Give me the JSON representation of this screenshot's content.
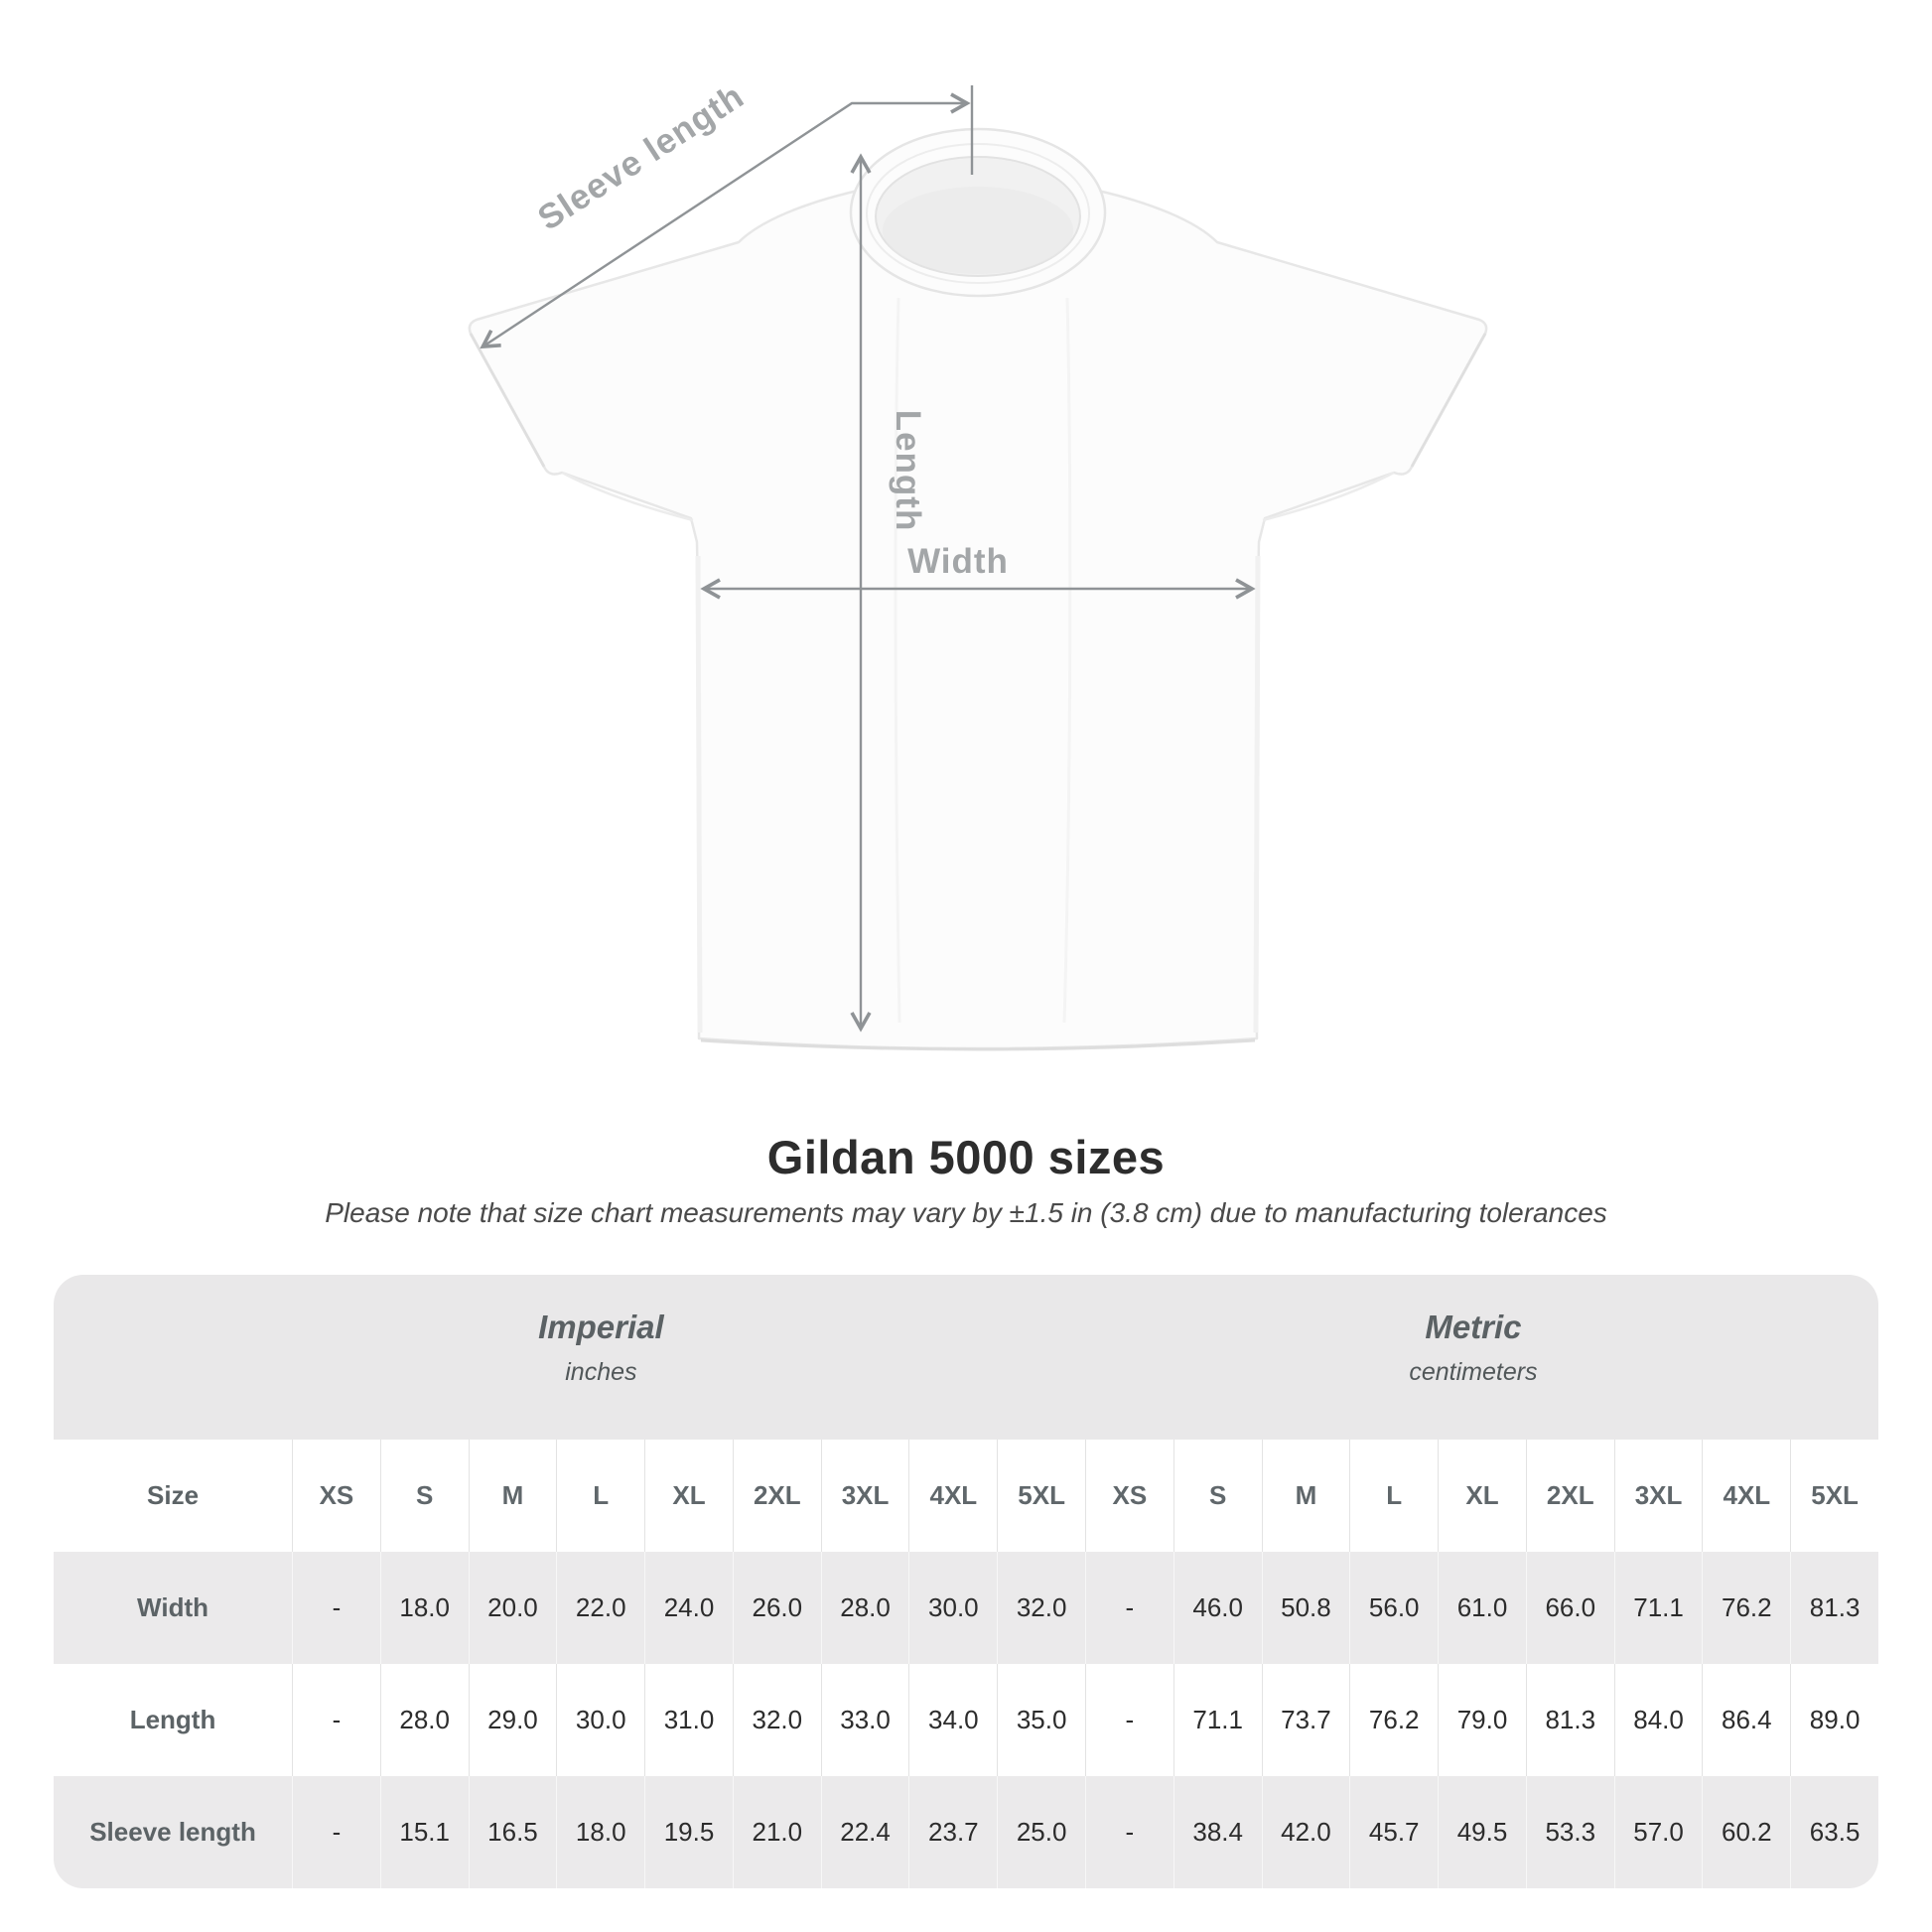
{
  "diagram": {
    "labels": {
      "sleeve_length": "Sleeve length",
      "length": "Length",
      "width": "Width"
    },
    "colors": {
      "annotation_line": "#8f9396",
      "annotation_text": "#a3a6a8",
      "shirt_outline": "#e7e7e7"
    }
  },
  "heading": {
    "title": "Gildan 5000 sizes",
    "subtitle": "Please note that size chart measurements may vary by ±1.5 in (3.8 cm) due to manufacturing tolerances"
  },
  "size_table": {
    "units": {
      "imperial": {
        "title": "Imperial",
        "subtitle": "inches"
      },
      "metric": {
        "title": "Metric",
        "subtitle": "centimeters"
      }
    },
    "header": {
      "label": "Size",
      "imperial_sizes": [
        "XS",
        "S",
        "M",
        "L",
        "XL",
        "2XL",
        "3XL",
        "4XL",
        "5XL"
      ],
      "metric_sizes": [
        "XS",
        "S",
        "M",
        "L",
        "XL",
        "2XL",
        "3XL",
        "4XL",
        "5XL"
      ]
    },
    "rows": [
      {
        "label": "Width",
        "imperial": [
          "-",
          "18.0",
          "20.0",
          "22.0",
          "24.0",
          "26.0",
          "28.0",
          "30.0",
          "32.0"
        ],
        "metric": [
          "-",
          "46.0",
          "50.8",
          "56.0",
          "61.0",
          "66.0",
          "71.1",
          "76.2",
          "81.3"
        ]
      },
      {
        "label": "Length",
        "imperial": [
          "-",
          "28.0",
          "29.0",
          "30.0",
          "31.0",
          "32.0",
          "33.0",
          "34.0",
          "35.0"
        ],
        "metric": [
          "-",
          "71.1",
          "73.7",
          "76.2",
          "79.0",
          "81.3",
          "84.0",
          "86.4",
          "89.0"
        ]
      },
      {
        "label": "Sleeve length",
        "imperial": [
          "-",
          "15.1",
          "16.5",
          "18.0",
          "19.5",
          "21.0",
          "22.4",
          "23.7",
          "25.0"
        ],
        "metric": [
          "-",
          "38.4",
          "42.0",
          "45.7",
          "49.5",
          "53.3",
          "57.0",
          "60.2",
          "63.5"
        ]
      }
    ]
  }
}
